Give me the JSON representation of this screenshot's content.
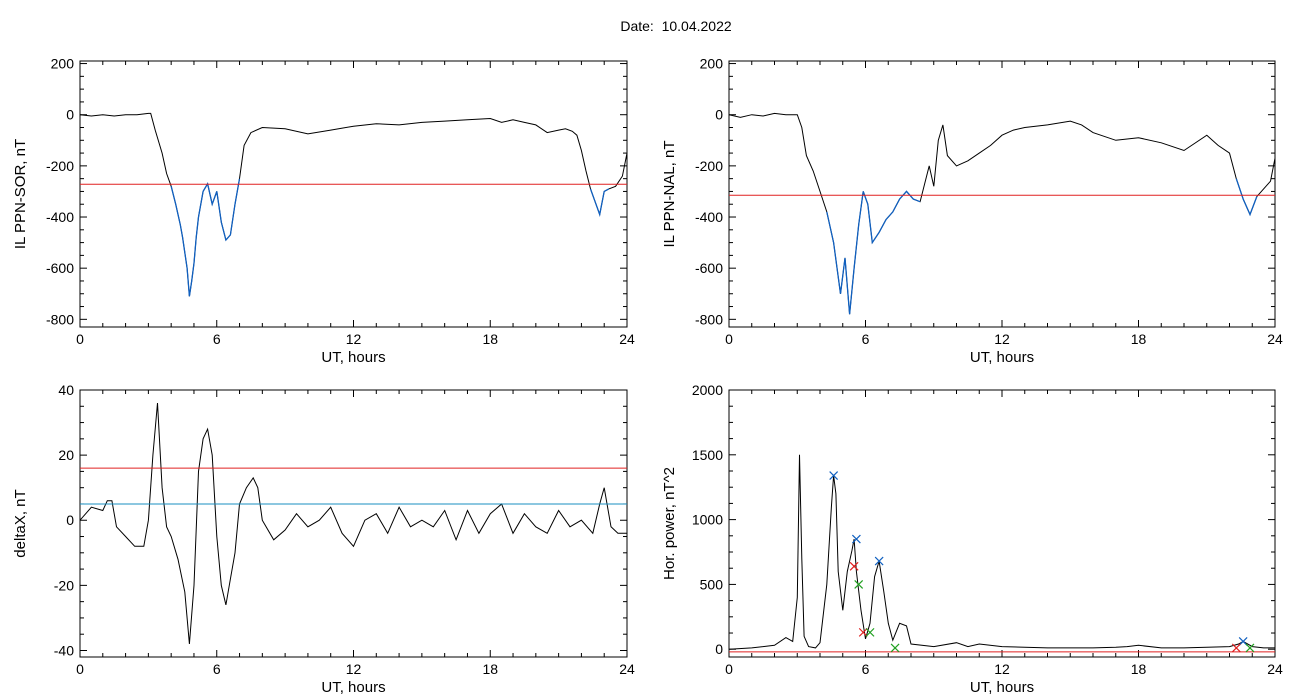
{
  "header": {
    "date_label": "Date:  10.04.2022"
  },
  "colors": {
    "trace": "#000000",
    "threshold": "#e02020",
    "highlight": "#1060c0",
    "reference": "#1a8fc0",
    "marker_red": "#e02020",
    "marker_green": "#20a020"
  },
  "chart_data": [
    {
      "type": "line",
      "title": "",
      "xlabel": "UT, hours",
      "ylabel": "IL PPN-SOR, nT",
      "xlim": [
        0,
        24
      ],
      "ylim": [
        -830,
        210
      ],
      "xticks": [
        0,
        6,
        12,
        18,
        24
      ],
      "xtick_labels": [
        "0",
        "6",
        "12",
        "18",
        "24"
      ],
      "yticks": [
        200,
        0,
        -200,
        -400,
        -600,
        -800
      ],
      "ytick_labels": [
        "200",
        "0",
        "-200",
        "-400",
        "-600",
        "-800"
      ],
      "threshold": -272,
      "highlight_ranges": [
        [
          4.0,
          7.0
        ],
        [
          22.3,
          23.3
        ]
      ],
      "series": [
        {
          "x": [
            0,
            0.5,
            1,
            1.5,
            2,
            2.5,
            3,
            3.1,
            3.3,
            3.6,
            3.8,
            4.0,
            4.2,
            4.4,
            4.5,
            4.7,
            4.8,
            4.9,
            5.0,
            5.1,
            5.2,
            5.4,
            5.6,
            5.8,
            6.0,
            6.2,
            6.4,
            6.6,
            6.8,
            7.0,
            7.2,
            7.5,
            8,
            9,
            10,
            11,
            12,
            13,
            14,
            15,
            16,
            17,
            18,
            18.5,
            19,
            19.5,
            20,
            20.5,
            21,
            21.3,
            21.6,
            21.8,
            22.0,
            22.2,
            22.4,
            22.6,
            22.8,
            23.0,
            23.2,
            23.5,
            23.8,
            24
          ],
          "values": [
            0,
            -5,
            0,
            -5,
            0,
            0,
            5,
            5,
            -60,
            -150,
            -230,
            -280,
            -350,
            -430,
            -480,
            -600,
            -710,
            -650,
            -580,
            -480,
            -400,
            -300,
            -270,
            -350,
            -300,
            -420,
            -490,
            -470,
            -350,
            -250,
            -120,
            -70,
            -50,
            -55,
            -75,
            -60,
            -45,
            -35,
            -40,
            -30,
            -25,
            -20,
            -15,
            -30,
            -20,
            -30,
            -40,
            -70,
            -60,
            -55,
            -65,
            -80,
            -140,
            -220,
            -290,
            -340,
            -390,
            -300,
            -290,
            -280,
            -240,
            -150
          ]
        }
      ]
    },
    {
      "type": "line",
      "title": "",
      "xlabel": "UT, hours",
      "ylabel": "IL PPN-NAL, nT",
      "xlim": [
        0,
        24
      ],
      "ylim": [
        -830,
        210
      ],
      "xticks": [
        0,
        6,
        12,
        18,
        24
      ],
      "xtick_labels": [
        "0",
        "6",
        "12",
        "18",
        "24"
      ],
      "yticks": [
        200,
        0,
        -200,
        -400,
        -600,
        -800
      ],
      "ytick_labels": [
        "200",
        "0",
        "-200",
        "-400",
        "-600",
        "-800"
      ],
      "threshold": -315,
      "highlight_ranges": [
        [
          4.2,
          8.5
        ],
        [
          22.3,
          23.3
        ]
      ],
      "series": [
        {
          "x": [
            0,
            0.5,
            1,
            1.5,
            2,
            2.5,
            3,
            3.2,
            3.4,
            3.7,
            4.0,
            4.3,
            4.6,
            4.9,
            5.1,
            5.3,
            5.5,
            5.7,
            5.9,
            6.1,
            6.3,
            6.6,
            6.9,
            7.2,
            7.5,
            7.8,
            8.1,
            8.4,
            8.8,
            9.0,
            9.2,
            9.4,
            9.6,
            10,
            10.5,
            11,
            11.5,
            12,
            12.5,
            13,
            14,
            15,
            15.5,
            16,
            17,
            18,
            19,
            20,
            21,
            21.5,
            22,
            22.3,
            22.6,
            22.9,
            23.2,
            23.5,
            23.8,
            24
          ],
          "values": [
            0,
            -10,
            0,
            -5,
            5,
            0,
            0,
            -50,
            -160,
            -220,
            -300,
            -380,
            -500,
            -700,
            -560,
            -780,
            -600,
            -430,
            -300,
            -350,
            -500,
            -460,
            -410,
            -380,
            -330,
            -300,
            -330,
            -340,
            -200,
            -280,
            -100,
            -40,
            -160,
            -200,
            -180,
            -150,
            -120,
            -80,
            -60,
            -50,
            -40,
            -25,
            -40,
            -70,
            -100,
            -90,
            -110,
            -140,
            -80,
            -120,
            -150,
            -250,
            -330,
            -390,
            -320,
            -290,
            -260,
            -170
          ]
        }
      ]
    },
    {
      "type": "line",
      "title": "",
      "xlabel": "UT, hours",
      "ylabel": "deltaX, nT",
      "xlim": [
        0,
        24
      ],
      "ylim": [
        -42,
        40
      ],
      "xticks": [
        0,
        6,
        12,
        18,
        24
      ],
      "xtick_labels": [
        "0",
        "6",
        "12",
        "18",
        "24"
      ],
      "yticks": [
        40,
        20,
        0,
        -20,
        -40
      ],
      "ytick_labels": [
        "40",
        "20",
        "0",
        "-20",
        "-40"
      ],
      "threshold": 16,
      "reference": 5,
      "series": [
        {
          "x": [
            0,
            0.5,
            1,
            1.2,
            1.4,
            1.6,
            2.0,
            2.4,
            2.8,
            3.0,
            3.2,
            3.4,
            3.6,
            3.8,
            4.0,
            4.3,
            4.6,
            4.8,
            5.0,
            5.2,
            5.4,
            5.6,
            5.8,
            6.0,
            6.2,
            6.4,
            6.6,
            6.8,
            7.0,
            7.3,
            7.6,
            7.8,
            8.0,
            8.5,
            9.0,
            9.5,
            10,
            10.5,
            11,
            11.5,
            12,
            12.5,
            13,
            13.5,
            14,
            14.5,
            15,
            15.5,
            16,
            16.5,
            17,
            17.5,
            18,
            18.5,
            19,
            19.5,
            20,
            20.5,
            21,
            21.5,
            22,
            22.5,
            22.8,
            23.0,
            23.3,
            23.6,
            24
          ],
          "values": [
            0,
            4,
            3,
            6,
            6,
            -2,
            -5,
            -8,
            -8,
            0,
            20,
            36,
            10,
            -2,
            -5,
            -12,
            -22,
            -38,
            -20,
            15,
            25,
            28,
            20,
            -5,
            -20,
            -26,
            -18,
            -10,
            5,
            10,
            13,
            10,
            0,
            -6,
            -3,
            2,
            -2,
            0,
            4,
            -4,
            -8,
            0,
            2,
            -4,
            4,
            -2,
            0,
            -2,
            3,
            -6,
            3,
            -4,
            2,
            5,
            -4,
            2,
            -2,
            -4,
            3,
            -2,
            0,
            -4,
            5,
            10,
            -2,
            -4,
            -4
          ]
        }
      ]
    },
    {
      "type": "line",
      "title": "",
      "xlabel": "UT, hours",
      "ylabel": "Hor. power, nT^2",
      "xlim": [
        0,
        24
      ],
      "ylim": [
        -60,
        2000
      ],
      "xticks": [
        0,
        6,
        12,
        18,
        24
      ],
      "xtick_labels": [
        "0",
        "6",
        "12",
        "18",
        "24"
      ],
      "yticks": [
        2000,
        1500,
        1000,
        500,
        0
      ],
      "ytick_labels": [
        "2000",
        "1500",
        "1000",
        "500",
        "0"
      ],
      "threshold": -20,
      "series": [
        {
          "x": [
            0,
            1,
            2,
            2.5,
            2.8,
            3.0,
            3.1,
            3.2,
            3.3,
            3.5,
            3.8,
            4.0,
            4.3,
            4.5,
            4.6,
            4.7,
            4.8,
            5.0,
            5.2,
            5.4,
            5.5,
            5.6,
            5.8,
            6.0,
            6.2,
            6.4,
            6.6,
            6.8,
            7.0,
            7.2,
            7.5,
            7.8,
            8.0,
            9,
            10,
            10.5,
            11,
            12,
            13,
            14,
            15,
            16,
            17,
            17.5,
            18,
            19,
            20,
            21,
            22,
            22.4,
            22.6,
            23,
            23.5,
            24
          ],
          "values": [
            0,
            10,
            30,
            90,
            60,
            400,
            1500,
            700,
            100,
            20,
            10,
            50,
            500,
            1100,
            1340,
            1200,
            600,
            300,
            600,
            760,
            850,
            600,
            300,
            80,
            200,
            560,
            680,
            450,
            200,
            70,
            200,
            180,
            40,
            20,
            50,
            20,
            40,
            20,
            15,
            10,
            10,
            10,
            15,
            20,
            30,
            10,
            10,
            15,
            20,
            40,
            60,
            20,
            10,
            10
          ]
        }
      ],
      "markers": {
        "blue": [
          [
            4.6,
            1340
          ],
          [
            5.6,
            850
          ],
          [
            6.6,
            680
          ],
          [
            22.6,
            60
          ]
        ],
        "red": [
          [
            5.5,
            640
          ],
          [
            5.9,
            130
          ],
          [
            22.3,
            10
          ]
        ],
        "green": [
          [
            5.7,
            500
          ],
          [
            6.2,
            130
          ],
          [
            7.3,
            10
          ],
          [
            22.9,
            10
          ]
        ]
      }
    }
  ]
}
